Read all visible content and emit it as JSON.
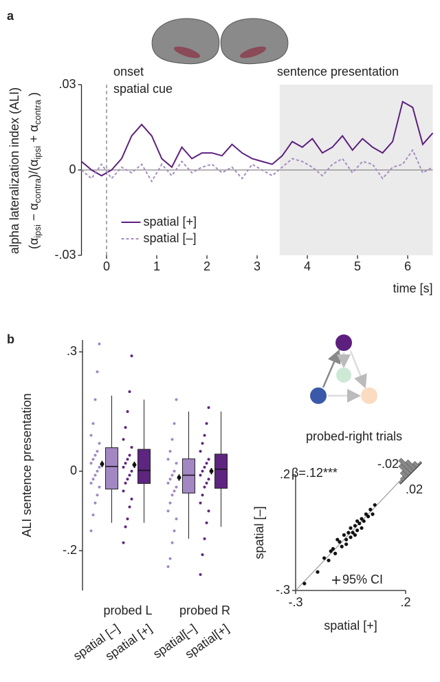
{
  "chart_data": [
    {
      "type": "line",
      "panel": "a",
      "ylabel": "alpha lateralization index (ALI)",
      "ylabel_formula": [
        {
          "t": "(α"
        },
        {
          "t": "ipsi",
          "sub": true
        },
        {
          "t": " − α"
        },
        {
          "t": "contra",
          "sub": true
        },
        {
          "t": ")/(α"
        },
        {
          "t": "ipsi",
          "sub": true
        },
        {
          "t": " + α"
        },
        {
          "t": "contra",
          "sub": true
        },
        {
          "t": " )"
        }
      ],
      "xlabel": "time [s]",
      "x": [
        -0.5,
        -0.3,
        -0.1,
        0.1,
        0.3,
        0.5,
        0.7,
        0.9,
        1.1,
        1.3,
        1.5,
        1.7,
        1.9,
        2.1,
        2.3,
        2.5,
        2.7,
        2.9,
        3.1,
        3.3,
        3.5,
        3.7,
        3.9,
        4.1,
        4.3,
        4.5,
        4.7,
        4.9,
        5.1,
        5.3,
        5.5,
        5.7,
        5.9,
        6.1,
        6.3,
        6.5
      ],
      "series": [
        {
          "name": "spatial [+]",
          "color": "#5c1f7e",
          "dash": false,
          "values": [
            0.003,
            0.0,
            -0.002,
            0.0,
            0.004,
            0.012,
            0.016,
            0.012,
            0.004,
            0.001,
            0.008,
            0.004,
            0.006,
            0.006,
            0.005,
            0.009,
            0.006,
            0.004,
            0.003,
            0.002,
            0.005,
            0.01,
            0.008,
            0.011,
            0.006,
            0.008,
            0.012,
            0.007,
            0.011,
            0.008,
            0.006,
            0.01,
            0.024,
            0.022,
            0.009,
            0.013
          ]
        },
        {
          "name": "spatial [–]",
          "color": "#a78cc0",
          "dash": true,
          "values": [
            0.0,
            -0.003,
            0.002,
            -0.003,
            0.001,
            -0.001,
            0.002,
            -0.004,
            0.002,
            -0.002,
            0.003,
            -0.001,
            0.001,
            0.002,
            -0.001,
            0.001,
            -0.003,
            0.002,
            0.0,
            -0.002,
            0.001,
            0.004,
            0.003,
            0.001,
            -0.002,
            0.002,
            0.004,
            -0.001,
            0.003,
            0.002,
            -0.003,
            0.001,
            0.002,
            0.007,
            -0.001,
            0.001
          ]
        }
      ],
      "xlim": [
        -0.5,
        6.5
      ],
      "xticks": [
        0,
        1,
        2,
        3,
        4,
        5,
        6
      ],
      "ylim": [
        -0.03,
        0.03
      ],
      "yticks": [
        {
          "value": 0.03,
          "label": ".03"
        },
        0,
        {
          "value": -0.03,
          "label": "-.03"
        }
      ],
      "cue": {
        "x": 0,
        "lines": [
          "onset",
          "spatial cue"
        ]
      },
      "highlight": [
        3.45,
        6.5
      ],
      "highlight_label": "sentence presentation",
      "legend": "lower left"
    },
    {
      "type": "box",
      "panel": "b",
      "ylabel": "ALI sentence presentation",
      "ylim": [
        -0.3,
        0.33
      ],
      "yticks": [
        {
          "value": 0.3,
          "label": ".3"
        },
        0,
        {
          "value": -0.2,
          "label": "-.2"
        }
      ],
      "groups": [
        {
          "name": "probed L",
          "boxes": [
            {
              "name": "spatial [–]",
              "color": "#a387c3",
              "whislo": -0.13,
              "q1": -0.045,
              "med": 0.012,
              "q3": 0.059,
              "whishi": 0.19,
              "mean": 0.018,
              "sem": 0.008,
              "points": [
                0.32,
                0.25,
                0.18,
                0.12,
                0.09,
                0.07,
                0.05,
                0.04,
                0.03,
                0.02,
                0.01,
                0.0,
                -0.01,
                -0.02,
                -0.03,
                -0.04,
                -0.06,
                -0.08,
                -0.11,
                -0.15
              ]
            },
            {
              "name": "spatial [+]",
              "color": "#5e2580",
              "whislo": -0.13,
              "q1": -0.031,
              "med": 0.002,
              "q3": 0.055,
              "whishi": 0.18,
              "mean": 0.016,
              "sem": 0.008,
              "points": [
                0.29,
                0.2,
                0.15,
                0.11,
                0.08,
                0.06,
                0.04,
                0.03,
                0.02,
                0.01,
                0.0,
                -0.01,
                -0.02,
                -0.03,
                -0.05,
                -0.07,
                -0.09,
                -0.12,
                -0.14,
                -0.18
              ]
            }
          ]
        },
        {
          "name": "probed R",
          "boxes": [
            {
              "name": "spatial[–]",
              "color": "#a387c3",
              "whislo": -0.17,
              "q1": -0.055,
              "med": -0.01,
              "q3": 0.031,
              "whishi": 0.15,
              "mean": -0.016,
              "sem": 0.008,
              "points": [
                0.18,
                0.12,
                0.08,
                0.05,
                0.03,
                0.02,
                0.0,
                -0.01,
                -0.02,
                -0.03,
                -0.04,
                -0.05,
                -0.06,
                -0.08,
                -0.1,
                -0.12,
                -0.15,
                -0.18,
                -0.22,
                -0.24
              ]
            },
            {
              "name": "spatial[+]",
              "color": "#5e2580",
              "whislo": -0.14,
              "q1": -0.043,
              "med": 0.005,
              "q3": 0.043,
              "whishi": 0.15,
              "mean": 0.0,
              "sem": 0.008,
              "points": [
                0.16,
                0.12,
                0.09,
                0.07,
                0.05,
                0.03,
                0.02,
                0.01,
                0.0,
                -0.01,
                -0.02,
                -0.03,
                -0.04,
                -0.06,
                -0.08,
                -0.1,
                -0.13,
                -0.17,
                -0.21,
                -0.26
              ]
            }
          ]
        }
      ]
    },
    {
      "type": "scatter",
      "title": "probed-right trials",
      "xlabel": "spatial [+]",
      "ylabel": "spatial [–]",
      "annotation": "β=.12***",
      "marker_note": "95% CI",
      "x": [
        -0.26,
        -0.2,
        -0.17,
        -0.15,
        -0.13,
        -0.12,
        -0.1,
        -0.09,
        -0.08,
        -0.07,
        -0.06,
        -0.05,
        -0.05,
        -0.04,
        -0.03,
        -0.02,
        -0.02,
        -0.01,
        0.0,
        0.01,
        0.02,
        0.03,
        0.04,
        0.05,
        0.06,
        -0.11,
        -0.07,
        -0.03,
        0.0,
        -0.14
      ],
      "y": [
        -0.27,
        -0.22,
        -0.16,
        -0.17,
        -0.12,
        -0.14,
        -0.09,
        -0.11,
        -0.06,
        -0.08,
        -0.05,
        -0.07,
        -0.03,
        -0.05,
        -0.02,
        -0.04,
        0.0,
        -0.01,
        0.01,
        0.0,
        0.03,
        0.02,
        0.05,
        0.03,
        0.07,
        -0.08,
        -0.1,
        -0.06,
        -0.03,
        -0.13
      ],
      "color": "#111111",
      "xlim": [
        -0.3,
        0.2
      ],
      "xticks": [
        {
          "value": -0.3,
          "label": "-.3"
        },
        {
          "value": 0.2,
          "label": ".2"
        }
      ],
      "ylim": [
        -0.3,
        0.2
      ],
      "yticks": [
        {
          "value": -0.3,
          "label": "-.3"
        },
        {
          "value": 0.2,
          "label": ".2"
        }
      ],
      "identity_line": true,
      "inset": {
        "bins": [
          -0.02,
          -0.015,
          -0.01,
          -0.005,
          0,
          0.005,
          0.01,
          0.015,
          0.02
        ],
        "counts": [
          1,
          2,
          4,
          7,
          9,
          6,
          3,
          1
        ],
        "ticks": [
          {
            "value": -0.02,
            "label": "-.02"
          },
          {
            "value": 0.02,
            "label": ".02"
          }
        ]
      }
    }
  ]
}
